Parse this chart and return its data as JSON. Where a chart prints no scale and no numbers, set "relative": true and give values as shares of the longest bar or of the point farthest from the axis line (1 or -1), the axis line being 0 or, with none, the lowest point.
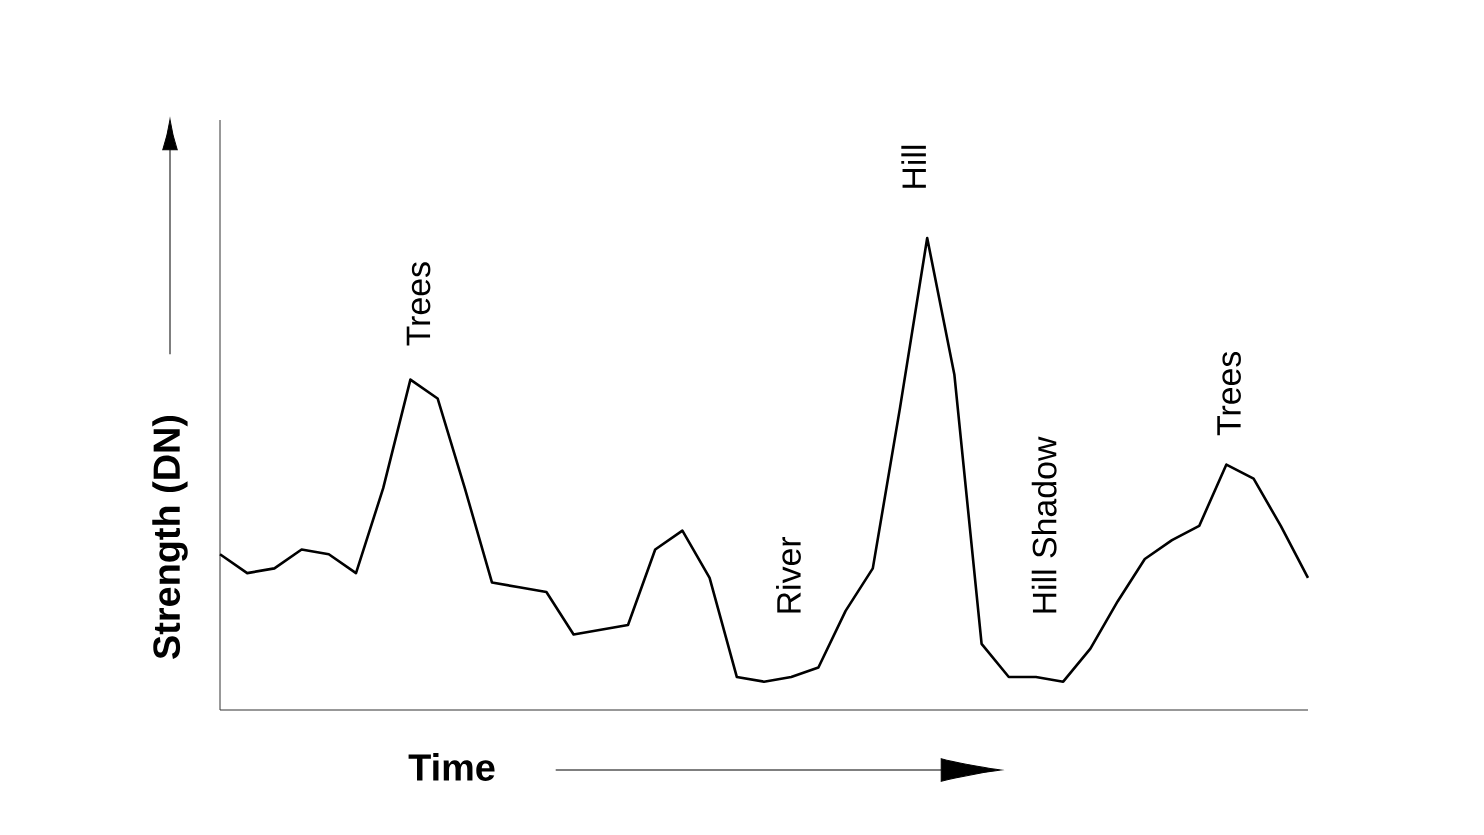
{
  "chart_data": {
    "type": "line",
    "relative": true,
    "xlabel": "Time",
    "ylabel": "Strength (DN)",
    "categories": [
      null,
      null,
      null,
      null,
      null,
      null,
      null,
      null,
      null,
      null,
      null,
      null,
      null,
      null,
      null,
      null,
      null,
      null,
      null,
      null,
      null,
      null,
      null,
      null,
      null,
      null,
      null,
      null,
      null,
      null,
      null,
      null,
      null,
      null,
      null,
      null,
      null,
      null,
      null,
      null,
      null
    ],
    "series": [
      {
        "color": "#000000",
        "values": [
          0.33,
          0.29,
          0.3,
          0.34,
          0.33,
          0.29,
          0.47,
          0.7,
          0.66,
          0.47,
          0.27,
          0.26,
          0.25,
          0.16,
          0.17,
          0.18,
          0.34,
          0.38,
          0.28,
          0.07,
          0.06,
          0.07,
          0.09,
          0.21,
          0.3,
          0.64,
          1,
          0.71,
          0.14,
          0.07,
          0.07,
          0.06,
          0.13,
          0.23,
          0.32,
          0.36,
          0.39,
          0.52,
          0.49,
          0.39,
          0.28
        ]
      }
    ],
    "annotations": [
      "Trees",
      "River",
      "Hill",
      "Hill Shadow",
      "Trees"
    ]
  }
}
